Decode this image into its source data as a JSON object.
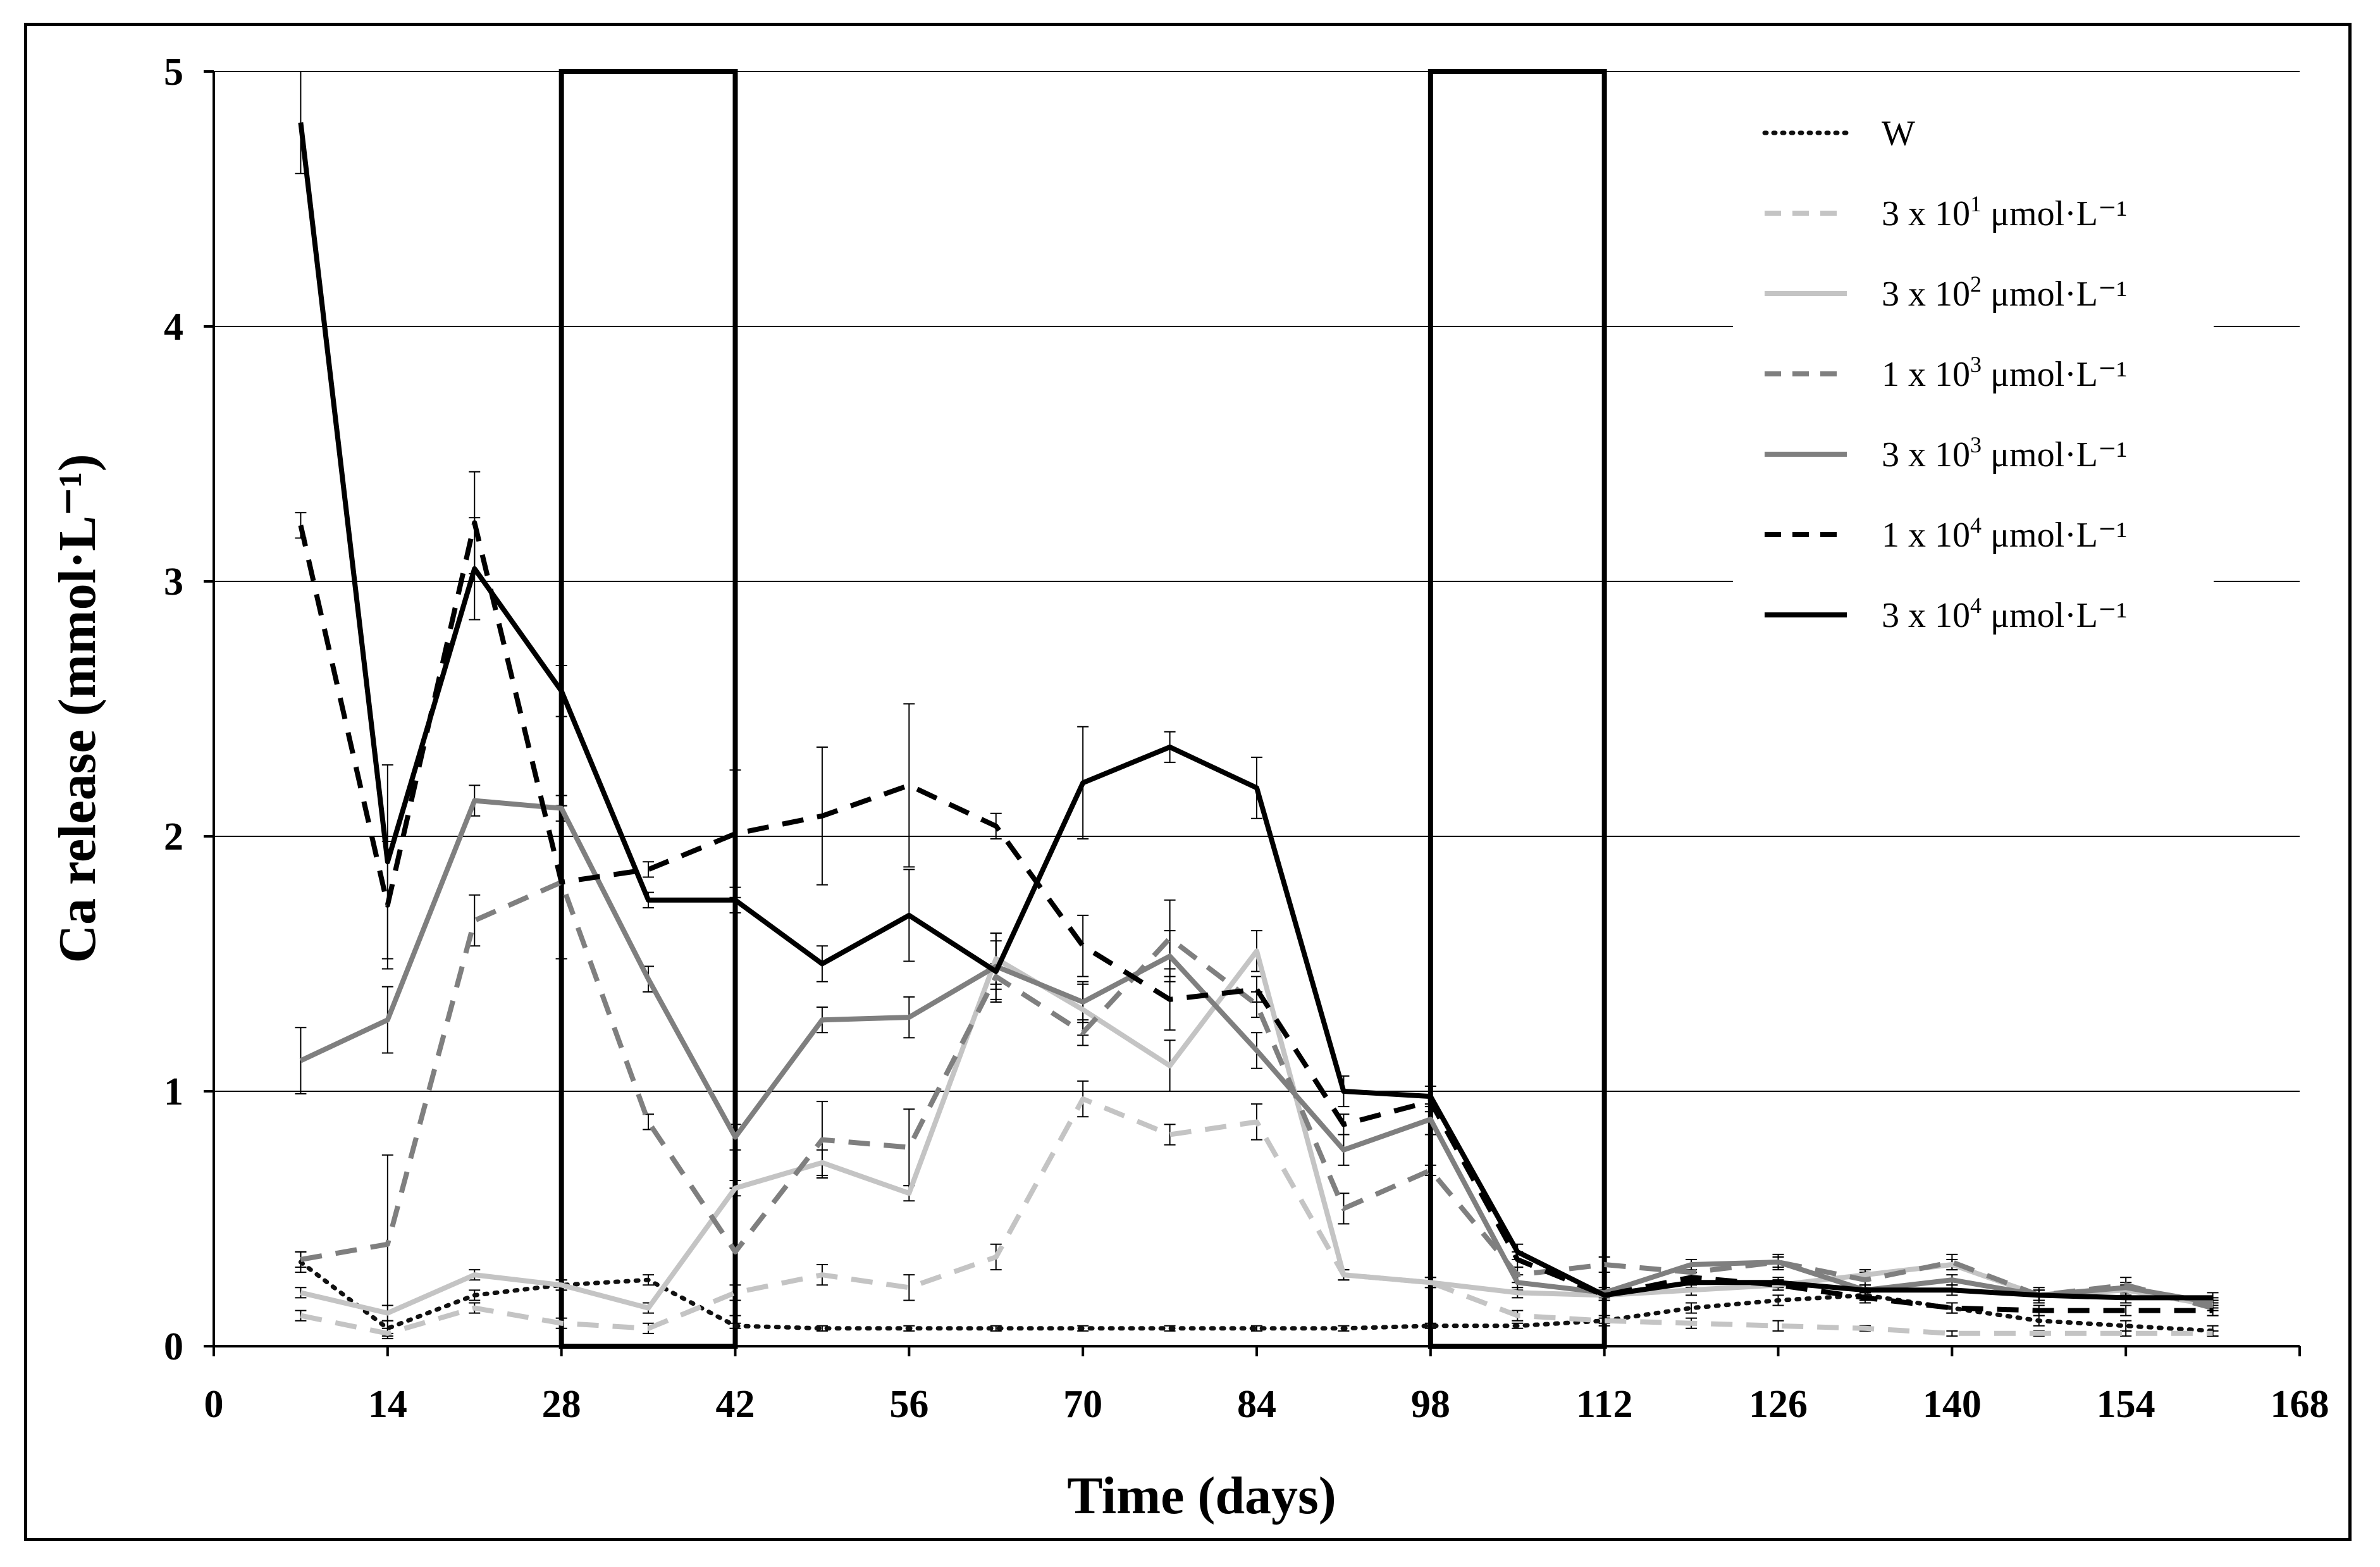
{
  "chart_data": {
    "type": "line",
    "title": "",
    "xlabel": "Time (days)",
    "ylabel": "Ca release (mmol·L⁻¹)",
    "xlim": [
      0,
      168
    ],
    "ylim": [
      0,
      5
    ],
    "xticks": [
      "0",
      "14",
      "28",
      "42",
      "56",
      "70",
      "84",
      "98",
      "112",
      "126",
      "140",
      "154",
      "168"
    ],
    "yticks": [
      "0",
      "1",
      "2",
      "3",
      "4",
      "5"
    ],
    "grid": "horizontal",
    "legend_position": "top-right",
    "highlight_boxes": [
      {
        "x_from": 28,
        "x_to": 42
      },
      {
        "x_from": 98,
        "x_to": 112
      }
    ],
    "x": [
      7,
      14,
      21,
      28,
      35,
      42,
      49,
      56,
      63,
      70,
      77,
      84,
      91,
      98,
      105,
      112,
      119,
      126,
      133,
      140,
      147,
      154,
      161
    ],
    "series": [
      {
        "name": "W",
        "legend": {
          "prefix": "W",
          "sup": "",
          "suffix": ""
        },
        "style": "dotted",
        "color": "#111111",
        "values": [
          0.33,
          0.07,
          0.2,
          0.24,
          0.26,
          0.08,
          0.07,
          0.07,
          0.07,
          0.07,
          0.07,
          0.07,
          0.07,
          0.08,
          0.08,
          0.1,
          0.15,
          0.18,
          0.2,
          0.15,
          0.1,
          0.08,
          0.06
        ],
        "errors": [
          0.04,
          0.03,
          0.02,
          0.02,
          0.02,
          0.01,
          0.01,
          0.01,
          0.01,
          0.01,
          0.01,
          0.01,
          0.01,
          0.01,
          0.01,
          0.01,
          0.02,
          0.02,
          0.02,
          0.02,
          0.02,
          0.02,
          0.02
        ]
      },
      {
        "name": "3 x 10¹ μmol·L⁻¹",
        "legend": {
          "prefix": "3 x 10",
          "sup": "1",
          "suffix": " μmol·L⁻¹"
        },
        "style": "dashed",
        "color": "#c4c4c4",
        "values": [
          0.12,
          0.05,
          0.15,
          0.09,
          0.07,
          0.21,
          0.28,
          0.23,
          0.35,
          0.97,
          0.83,
          0.88,
          0.28,
          0.25,
          0.12,
          0.1,
          0.09,
          0.08,
          0.07,
          0.05,
          0.05,
          0.05,
          0.05
        ],
        "errors": [
          0.02,
          0.02,
          0.02,
          0.02,
          0.02,
          0.03,
          0.04,
          0.05,
          0.05,
          0.07,
          0.04,
          0.07,
          0.02,
          0.02,
          0.02,
          0.02,
          0.02,
          0.02,
          0.01,
          0.01,
          0.01,
          0.01,
          0.01
        ]
      },
      {
        "name": "3 x 10² μmol·L⁻¹",
        "legend": {
          "prefix": "3 x 10",
          "sup": "2",
          "suffix": " μmol·L⁻¹"
        },
        "style": "solid",
        "color": "#c4c4c4",
        "values": [
          0.21,
          0.13,
          0.28,
          0.24,
          0.15,
          0.62,
          0.72,
          0.6,
          1.52,
          1.32,
          1.1,
          1.55,
          0.28,
          0.25,
          0.21,
          0.2,
          0.22,
          0.24,
          0.28,
          0.32,
          0.2,
          0.22,
          0.16
        ],
        "errors": [
          0.02,
          0.03,
          0.02,
          0.02,
          0.02,
          0.03,
          0.05,
          0.03,
          0.1,
          0.1,
          0.1,
          0.08,
          0.02,
          0.02,
          0.02,
          0.02,
          0.02,
          0.02,
          0.02,
          0.02,
          0.02,
          0.02,
          0.02
        ]
      },
      {
        "name": "1 x 10³ μmol·L⁻¹",
        "legend": {
          "prefix": "1 x 10",
          "sup": "3",
          "suffix": " μmol·L⁻¹"
        },
        "style": "dashed",
        "color": "#7f7f7f",
        "values": [
          0.34,
          0.4,
          1.67,
          1.82,
          0.88,
          0.37,
          0.81,
          0.78,
          1.45,
          1.23,
          1.6,
          1.34,
          0.54,
          0.69,
          0.28,
          0.32,
          0.29,
          0.33,
          0.26,
          0.33,
          0.2,
          0.24,
          0.15
        ],
        "errors": [
          0.03,
          0.35,
          0.1,
          0.3,
          0.03,
          0.25,
          0.15,
          0.15,
          0.05,
          0.05,
          0.15,
          0.05,
          0.06,
          0.02,
          0.03,
          0.03,
          0.03,
          0.03,
          0.03,
          0.03,
          0.03,
          0.03,
          0.03
        ]
      },
      {
        "name": "3 x 10³ μmol·L⁻¹",
        "legend": {
          "prefix": "3 x 10",
          "sup": "3",
          "suffix": " μmol·L⁻¹"
        },
        "style": "solid",
        "color": "#7f7f7f",
        "values": [
          1.12,
          1.28,
          2.14,
          2.11,
          1.44,
          0.82,
          1.28,
          1.29,
          1.49,
          1.35,
          1.53,
          1.16,
          0.77,
          0.89,
          0.25,
          0.21,
          0.32,
          0.33,
          0.22,
          0.26,
          0.2,
          0.23,
          0.17
        ],
        "errors": [
          0.13,
          0.13,
          0.06,
          0.05,
          0.05,
          0.05,
          0.05,
          0.08,
          0.13,
          0.08,
          0.1,
          0.07,
          0.06,
          0.06,
          0.03,
          0.02,
          0.02,
          0.02,
          0.02,
          0.02,
          0.02,
          0.02,
          0.02
        ]
      },
      {
        "name": "1 x 10⁴ μmol·L⁻¹",
        "legend": {
          "prefix": "1 x 10",
          "sup": "4",
          "suffix": " μmol·L⁻¹"
        },
        "style": "dashed",
        "color": "#000000",
        "values": [
          3.22,
          1.73,
          3.23,
          1.82,
          1.87,
          2.01,
          2.08,
          2.2,
          2.04,
          1.57,
          1.36,
          1.4,
          0.87,
          0.96,
          0.34,
          0.2,
          0.27,
          0.24,
          0.19,
          0.15,
          0.14,
          0.14,
          0.14
        ],
        "errors": [
          0.05,
          0.25,
          0.2,
          0.3,
          0.03,
          0.25,
          0.27,
          0.32,
          0.05,
          0.12,
          0.12,
          0.05,
          0.04,
          0.04,
          0.03,
          0.02,
          0.02,
          0.02,
          0.02,
          0.02,
          0.02,
          0.02,
          0.02
        ]
      },
      {
        "name": "3 x 10⁴ μmol·L⁻¹",
        "legend": {
          "prefix": "3 x 10",
          "sup": "4",
          "suffix": " μmol·L⁻¹"
        },
        "style": "solid",
        "color": "#000000",
        "values": [
          4.8,
          1.9,
          3.05,
          2.57,
          1.75,
          1.75,
          1.5,
          1.69,
          1.47,
          2.21,
          2.35,
          2.19,
          1.0,
          0.98,
          0.37,
          0.2,
          0.25,
          0.25,
          0.22,
          0.22,
          0.2,
          0.19,
          0.19
        ],
        "errors": [
          0.2,
          0.38,
          0.2,
          0.1,
          0.03,
          0.05,
          0.07,
          0.18,
          0.12,
          0.22,
          0.06,
          0.12,
          0.06,
          0.04,
          0.03,
          0.02,
          0.02,
          0.02,
          0.02,
          0.02,
          0.02,
          0.02,
          0.02
        ]
      }
    ]
  }
}
